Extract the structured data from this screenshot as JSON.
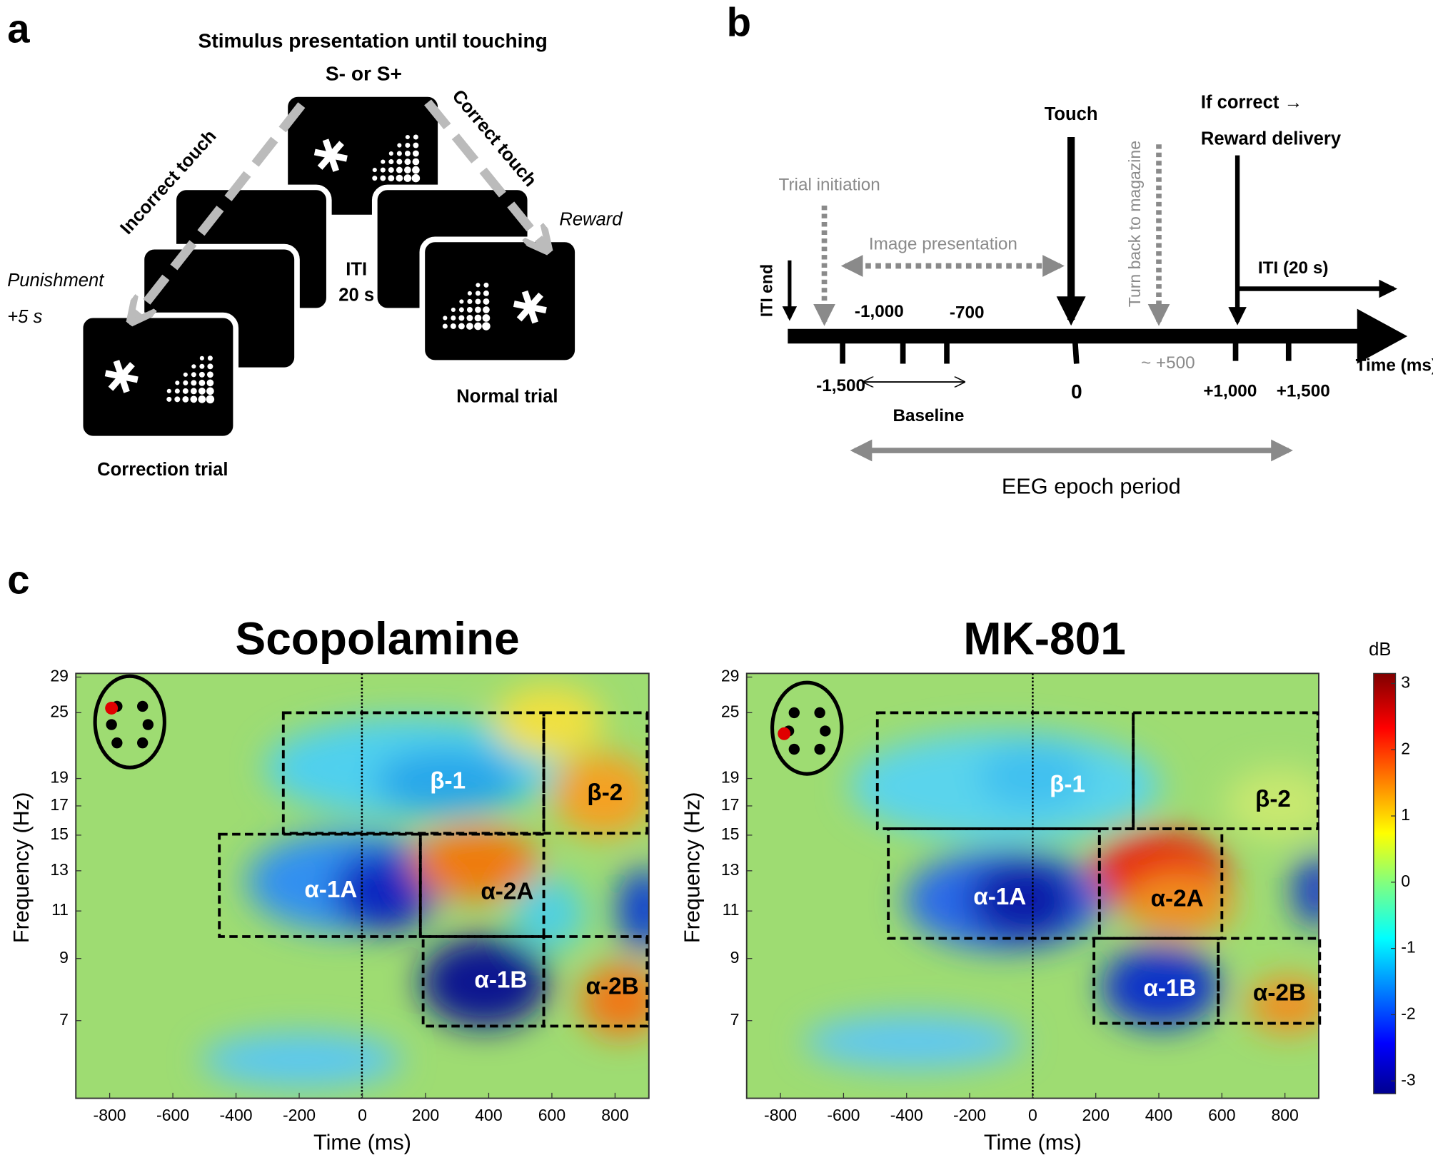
{
  "panel_a": {
    "label": "a",
    "title": "Stimulus presentation until touching",
    "stimulus": "S-  or S+",
    "incorrect": "Incorrect touch",
    "correct": "Correct touch",
    "reward": "Reward",
    "punishment": "Punishment",
    "penalty": "+5 s",
    "iti": "ITI",
    "iti_duration": "20 s",
    "normal": "Normal trial",
    "correction": "Correction trial"
  },
  "panel_b": {
    "label": "b",
    "touch": "Touch",
    "turn_back": "Turn back to magazine",
    "if_correct": "If correct →",
    "reward_delivery": "Reward delivery",
    "trial_initiation": "Trial initiation",
    "image_presentation": "Image presentation",
    "iti_end": "ITI end",
    "iti": "ITI (20 s)",
    "ticks_above": [
      "-1,000",
      "-700"
    ],
    "ticks_below": [
      "-1,500",
      "0",
      "~ +500",
      "+1,000",
      "+1,500"
    ],
    "time_label": "Time (ms)",
    "baseline": "Baseline",
    "epoch": "EEG epoch period"
  },
  "panel_c": {
    "label": "c",
    "plots": [
      {
        "title": "Scopolamine",
        "regions": [
          "β-1",
          "β-2",
          "α-1A",
          "α-2A",
          "α-1B",
          "α-2B"
        ]
      },
      {
        "title": "MK-801",
        "regions": [
          "β-1",
          "β-2",
          "α-1A",
          "α-2A",
          "α-1B",
          "α-2B"
        ]
      }
    ],
    "xticks": [
      "-800",
      "-600",
      "-400",
      "-200",
      "0",
      "200",
      "400",
      "600",
      "800"
    ],
    "yticks": [
      "29",
      "25",
      "19",
      "17",
      "15",
      "13",
      "11",
      "9",
      "7"
    ],
    "xlabel": "Time (ms)",
    "ylabel": "Frequency (Hz)",
    "colorbar": {
      "label": "dB",
      "ticks": [
        "3",
        "2",
        "1",
        "0",
        "-1",
        "-2",
        "-3"
      ]
    }
  }
}
